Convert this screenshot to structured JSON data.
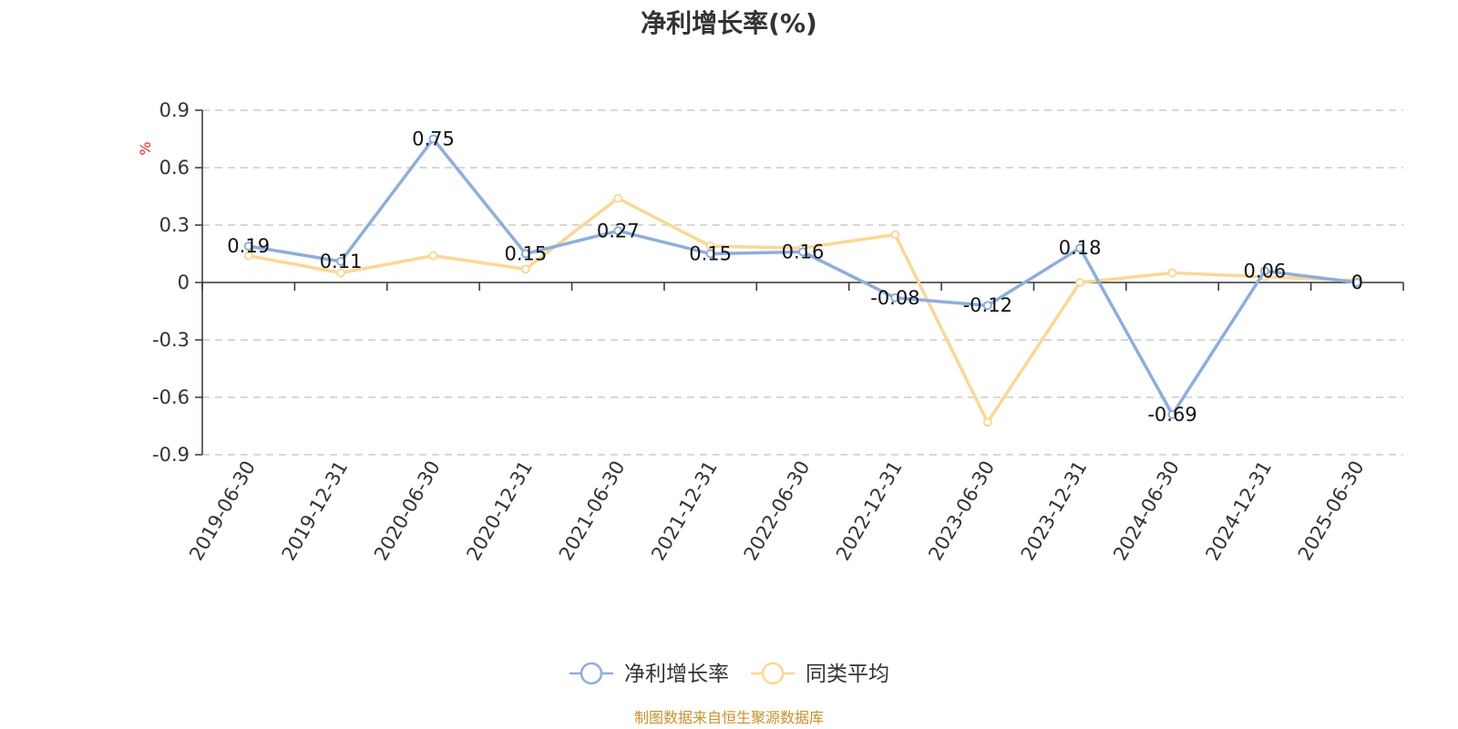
{
  "chart_data": {
    "type": "line",
    "title": "净利增长率(%)",
    "ylabel": "%",
    "x": [
      "2019-06-30",
      "2019-12-31",
      "2020-06-30",
      "2020-12-31",
      "2021-06-30",
      "2021-12-31",
      "2022-06-30",
      "2022-12-31",
      "2023-06-30",
      "2023-12-31",
      "2024-06-30",
      "2024-12-31",
      "2025-06-30"
    ],
    "ylim": [
      -0.9,
      0.9
    ],
    "yticks": [
      "0.9",
      "0.6",
      "0.3",
      "0",
      "-0.3",
      "-0.6",
      "-0.9"
    ],
    "grid": true,
    "legend_position": "bottom",
    "series": [
      {
        "name": "净利增长率",
        "color": "#8eaedb",
        "values": [
          0.19,
          0.11,
          0.75,
          0.15,
          0.27,
          0.15,
          0.16,
          -0.08,
          -0.12,
          0.18,
          -0.69,
          0.06,
          0
        ],
        "labels": [
          "0.19",
          "0.11",
          "0.75",
          "0.15",
          "0.27",
          "0.15",
          "0.16",
          "-0.08",
          "-0.12",
          "0.18",
          "-0.69",
          "0.06",
          "0"
        ]
      },
      {
        "name": "同类平均",
        "color": "#fbd796",
        "values": [
          0.14,
          0.05,
          0.14,
          0.07,
          0.44,
          0.19,
          0.18,
          0.25,
          -0.73,
          0.0,
          0.05,
          0.03,
          0.01
        ]
      }
    ],
    "source": "制图数据来自恒生聚源数据库",
    "source_color": "#c8902c"
  }
}
